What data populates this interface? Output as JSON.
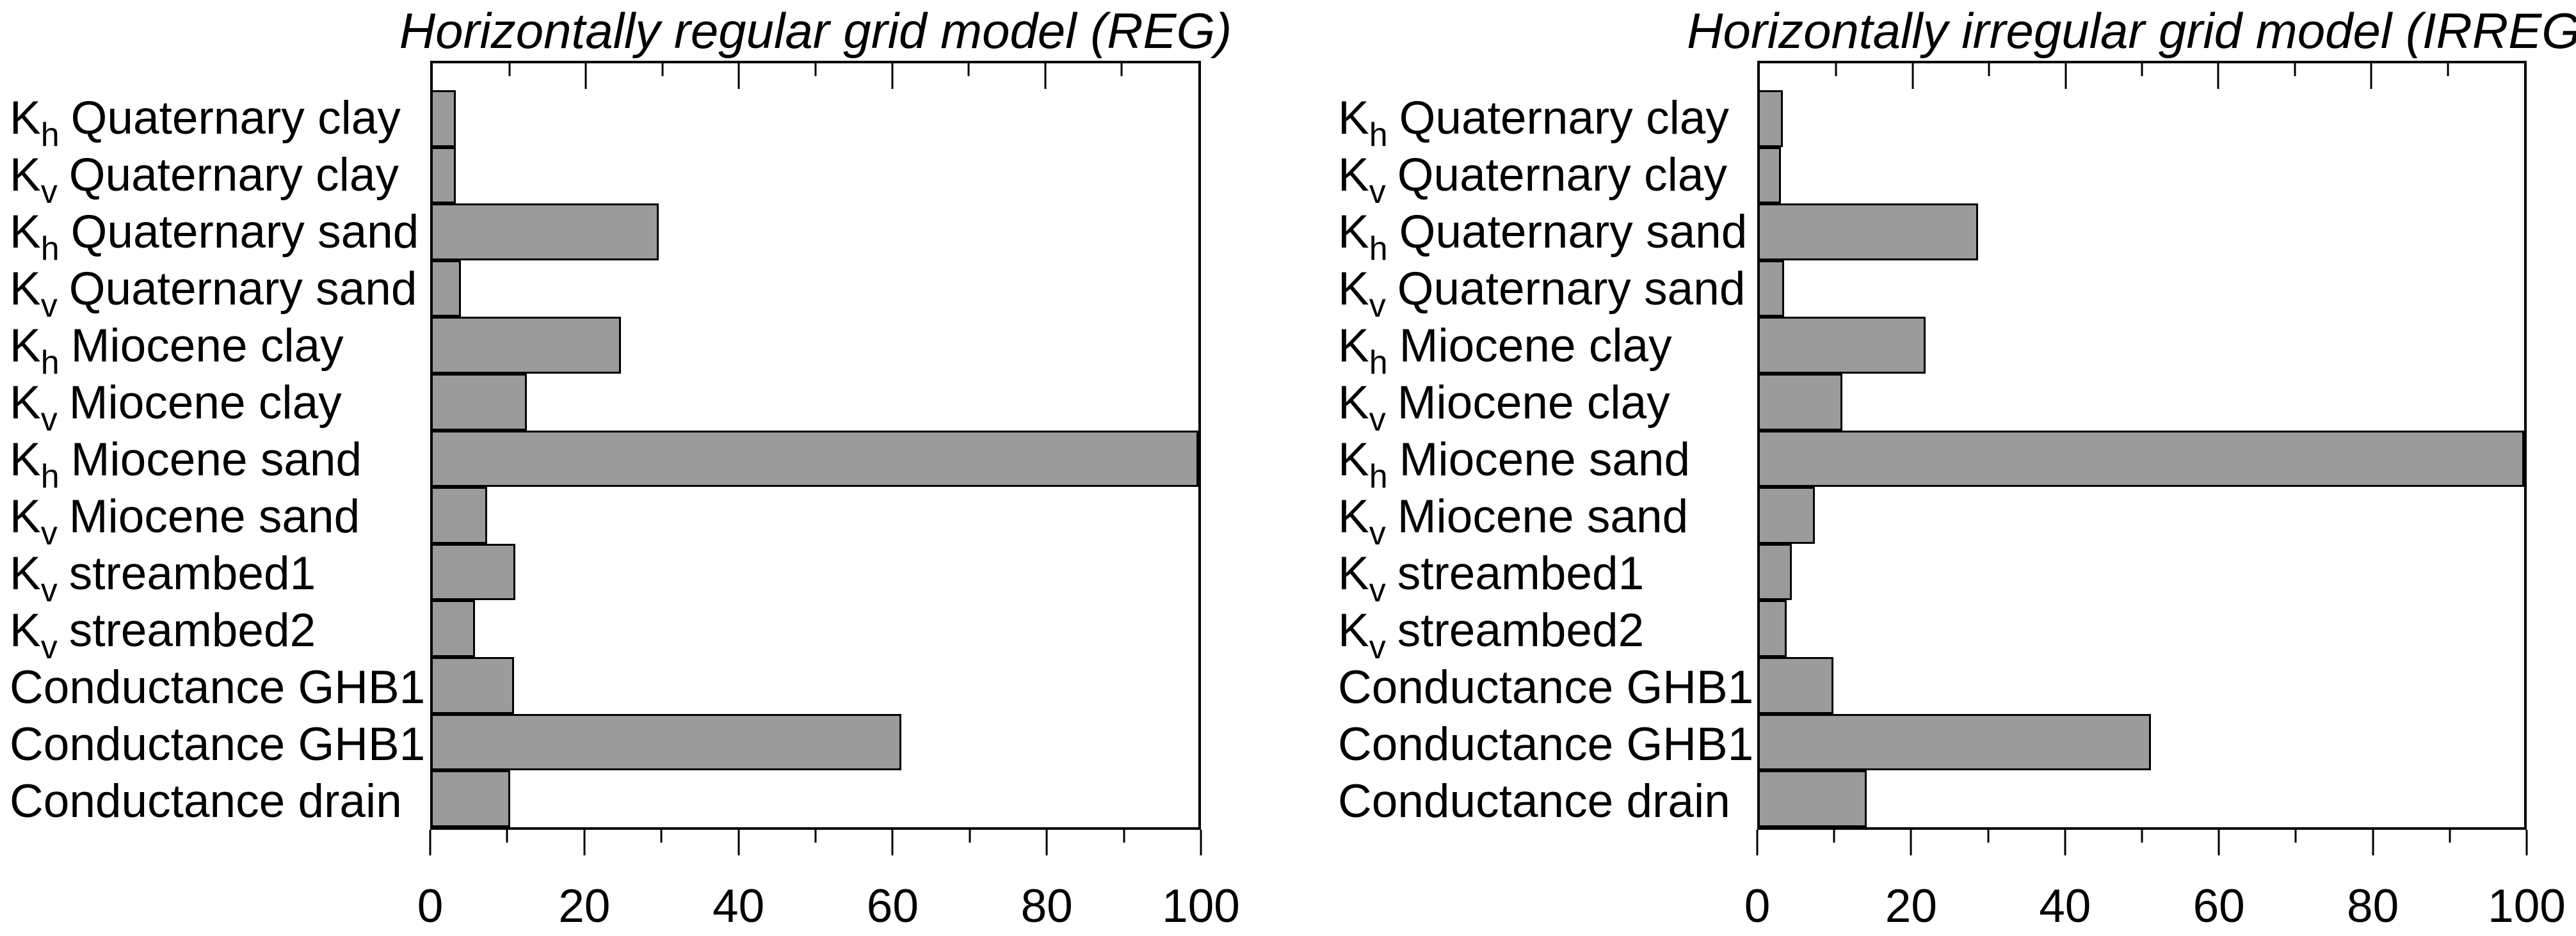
{
  "figure": {
    "background": "#ffffff",
    "bar_fill": "#9b9b9b",
    "bar_border": "#000000",
    "axis_color": "#000000",
    "text_color": "#000000"
  },
  "x_axis": {
    "min": 0,
    "max": 100,
    "major_ticks": [
      0,
      20,
      40,
      60,
      80,
      100
    ],
    "minor_ticks": [
      10,
      30,
      50,
      70,
      90
    ],
    "tick_labels": [
      "0",
      "20",
      "40",
      "60",
      "80",
      "100"
    ]
  },
  "category_labels_rich": [
    {
      "pre": "K",
      "sub": "h",
      "post": "Quaternary clay"
    },
    {
      "pre": "K",
      "sub": "v",
      "post": "Quaternary clay"
    },
    {
      "pre": "K",
      "sub": "h",
      "post": "Quaternary sand"
    },
    {
      "pre": "K",
      "sub": "v",
      "post": "Quaternary sand"
    },
    {
      "pre": "K",
      "sub": "h",
      "post": "Miocene clay"
    },
    {
      "pre": "K",
      "sub": "v",
      "post": "Miocene clay"
    },
    {
      "pre": "K",
      "sub": "h",
      "post": "Miocene sand"
    },
    {
      "pre": "K",
      "sub": "v",
      "post": "Miocene sand"
    },
    {
      "pre": "K",
      "sub": "v",
      "post": "streambed1"
    },
    {
      "pre": "K",
      "sub": "v",
      "post": "streambed2"
    },
    {
      "pre": "",
      "sub": "",
      "post": "Conductance GHB1"
    },
    {
      "pre": "",
      "sub": "",
      "post": "Conductance GHB1"
    },
    {
      "pre": "",
      "sub": "",
      "post": "Conductance drain"
    }
  ],
  "chart_data": [
    {
      "type": "bar",
      "orientation": "horizontal",
      "title": "Horizontally regular grid model (REG)",
      "categories": [
        "Kh Quaternary clay",
        "Kv Quaternary clay",
        "Kh Quaternary sand",
        "Kv Quaternary sand",
        "Kh Miocene clay",
        "Kv Miocene clay",
        "Kh Miocene sand",
        "Kv Miocene sand",
        "Kv streambed1",
        "Kv streambed2",
        "Conductance GHB1",
        "Conductance GHB1",
        "Conductance drain"
      ],
      "values": [
        3.0,
        3.0,
        29.5,
        3.7,
        24.6,
        12.3,
        100.0,
        7.1,
        10.8,
        5.5,
        10.6,
        61.2,
        10.1
      ],
      "xlim": [
        0,
        100
      ],
      "xlabel": "",
      "ylabel": "",
      "grid": false,
      "legend_position": "none",
      "bar_color": "#9b9b9b"
    },
    {
      "type": "bar",
      "orientation": "horizontal",
      "title": "Horizontally irregular grid model (IRREG)",
      "categories": [
        "Kh Quaternary clay",
        "Kv Quaternary clay",
        "Kh Quaternary sand",
        "Kv Quaternary sand",
        "Kh Miocene clay",
        "Kv Miocene clay",
        "Kh Miocene sand",
        "Kv Miocene sand",
        "Kv streambed1",
        "Kv streambed2",
        "Conductance GHB1",
        "Conductance GHB1",
        "Conductance drain"
      ],
      "values": [
        3.0,
        2.8,
        28.6,
        3.2,
        21.7,
        10.8,
        100.0,
        7.2,
        4.2,
        3.5,
        9.6,
        51.2,
        14.0
      ],
      "xlim": [
        0,
        100
      ],
      "xlabel": "",
      "ylabel": "",
      "grid": false,
      "legend_position": "none",
      "bar_color": "#9b9b9b"
    }
  ]
}
